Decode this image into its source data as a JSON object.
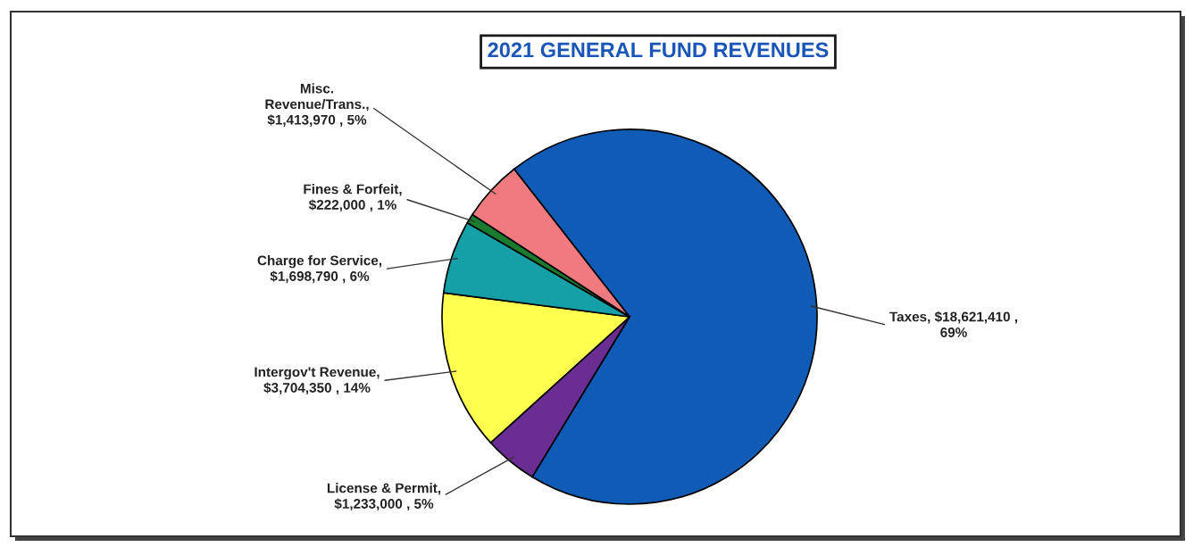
{
  "chart_data": {
    "type": "pie",
    "title": "2021 GENERAL FUND REVENUES",
    "categories": [
      "Taxes",
      "License & Permit",
      "Intergov't Revenue",
      "Charge for Service",
      "Fines & Forfeit",
      "Misc.\nRevenue/Trans."
    ],
    "values": [
      18621410,
      1233000,
      3704350,
      1698790,
      222000,
      1413970
    ],
    "value_labels": [
      ", $18,621,410 ,\n69%",
      ",\n$1,233,000 , 5%",
      ",\n$3,704,350 , 14%",
      ",\n$1,698,790 , 6%",
      ",\n$222,000 , 1%",
      ",\n$1,413,970 , 5%"
    ],
    "colors": [
      "#0f5bb5",
      "#6a2d91",
      "#ffff4f",
      "#159fa6",
      "#1a7a2e",
      "#f07a7f"
    ]
  }
}
